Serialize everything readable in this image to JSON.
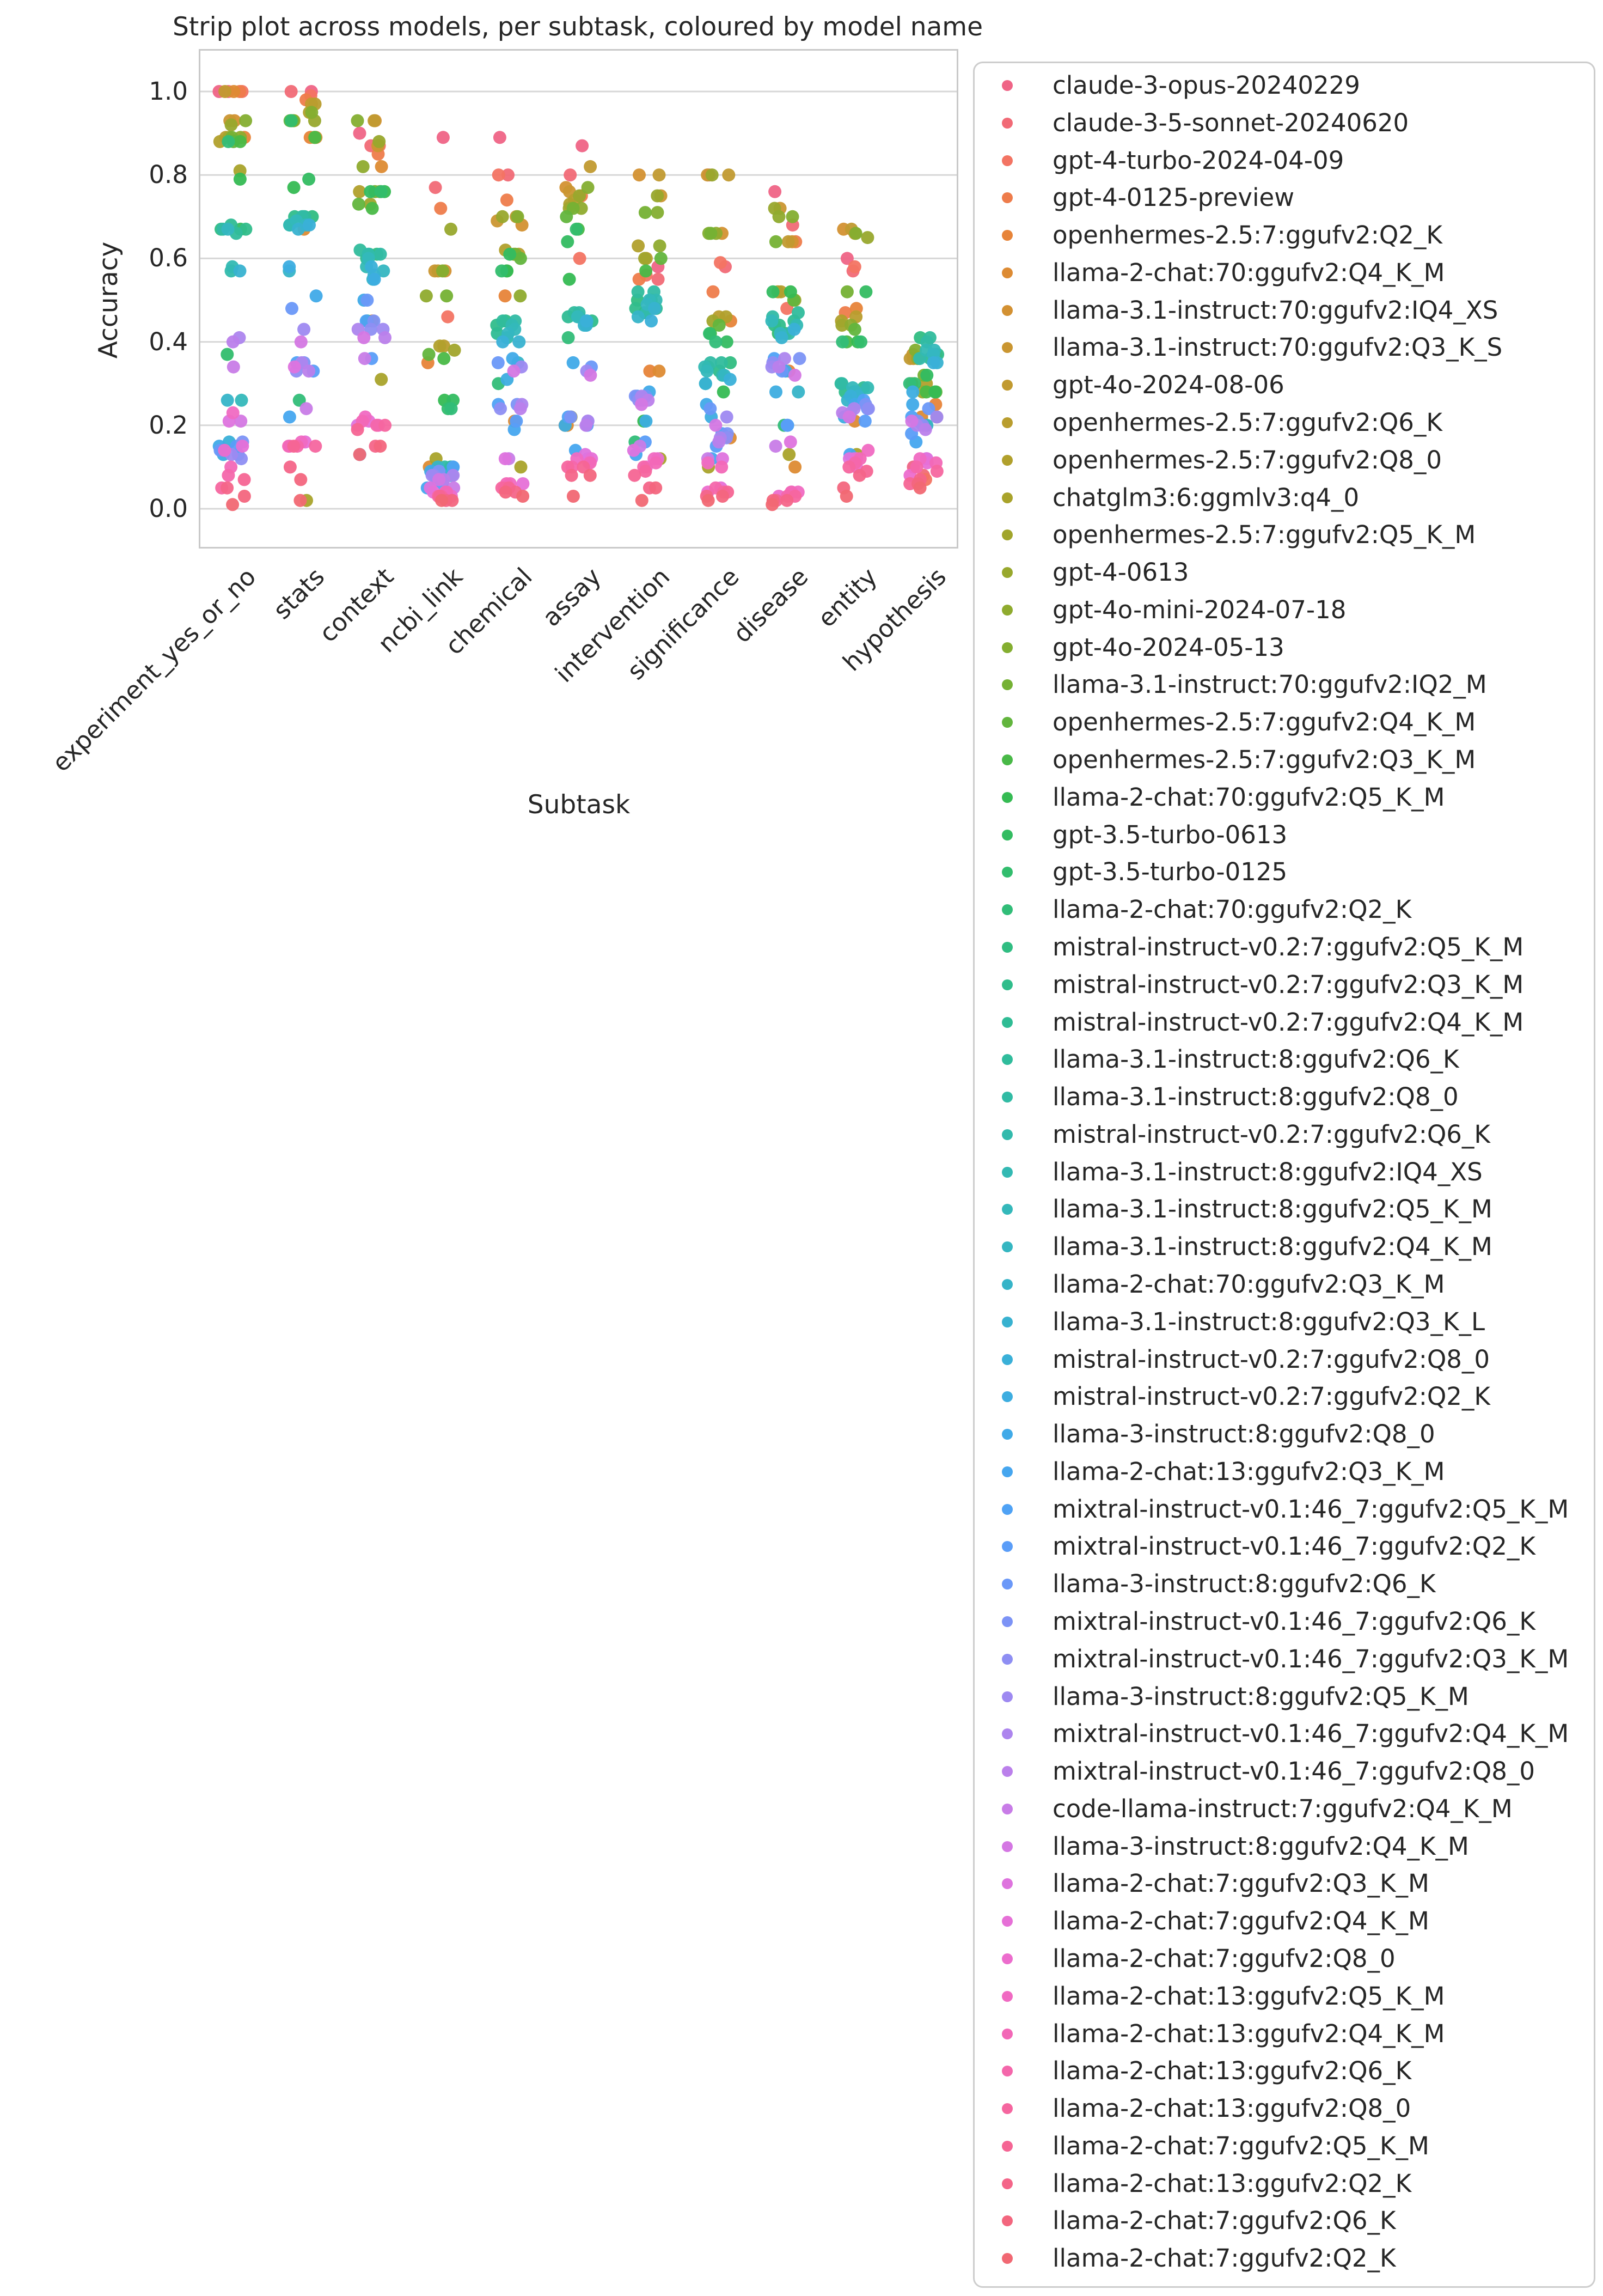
{
  "colors": {
    "background": "#ffffff",
    "text": "#262626",
    "grid": "#d7d7d7",
    "axes_border": "#c9c9c9",
    "legend_border": "#cdcdcd"
  },
  "chart_data": {
    "type": "scatter",
    "subtype": "strip",
    "title": "Strip plot across models, per subtask, coloured by model name",
    "xlabel": "Subtask",
    "ylabel": "Accuracy",
    "categories": [
      "experiment_yes_or_no",
      "stats",
      "context",
      "ncbi_link",
      "chemical",
      "assay",
      "intervention",
      "significance",
      "disease",
      "entity",
      "hypothesis"
    ],
    "ytick_labels": [
      "1.0",
      "0.8",
      "0.6",
      "0.4",
      "0.2",
      "0.0"
    ],
    "ytick_values": [
      1.0,
      0.8,
      0.6,
      0.4,
      0.2,
      0.0
    ],
    "ylim": [
      -0.1,
      1.1
    ],
    "grid": "horizontal",
    "legend_position": "right",
    "series": [
      {
        "name": "claude-3-opus-20240229",
        "color": "#ef6486",
        "values": [
          1.0,
          1.0,
          0.9,
          0.89,
          0.89,
          0.87,
          0.58,
          0.8,
          0.76,
          0.6,
          0.1
        ]
      },
      {
        "name": "claude-3-5-sonnet-20240620",
        "color": "#f16a76",
        "values": [
          1.0,
          1.0,
          0.87,
          0.77,
          0.8,
          0.8,
          0.55,
          0.58,
          0.68,
          0.57,
          0.08
        ]
      },
      {
        "name": "gpt-4-turbo-2024-04-09",
        "color": "#f37463",
        "values": [
          1.0,
          0.99,
          0.87,
          0.46,
          0.8,
          0.6,
          0.56,
          0.59,
          0.48,
          0.58,
          0.07
        ]
      },
      {
        "name": "gpt-4-0125-preview",
        "color": "#ee7c4b",
        "values": [
          1.0,
          0.98,
          0.85,
          0.72,
          0.74,
          0.75,
          0.55,
          0.52,
          0.64,
          0.47,
          0.22
        ]
      },
      {
        "name": "openhermes-2.5:7:ggufv2:Q2_K",
        "color": "#e78439",
        "values": [
          0.89,
          0.89,
          0.45,
          0.35,
          0.51,
          0.2,
          0.33,
          0.45,
          0.33,
          0.48,
          0.25
        ]
      },
      {
        "name": "llama-2-chat:70:ggufv2:Q4_K_M",
        "color": "#dd8b33",
        "values": [
          1.0,
          0.67,
          0.82,
          0.1,
          0.21,
          0.2,
          0.33,
          0.17,
          0.1,
          0.21,
          0.22
        ]
      },
      {
        "name": "llama-3.1-instruct:70:ggufv2:IQ4_XS",
        "color": "#d39132",
        "values": [
          0.93,
          0.89,
          0.93,
          0.57,
          0.68,
          0.77,
          0.8,
          0.66,
          0.64,
          0.67,
          0.36
        ]
      },
      {
        "name": "llama-3.1-instruct:70:ggufv2:Q3_K_S",
        "color": "#ca9631",
        "values": [
          0.93,
          0.89,
          0.87,
          0.57,
          0.69,
          0.76,
          0.75,
          0.8,
          0.72,
          0.66,
          0.37
        ]
      },
      {
        "name": "gpt-4o-2024-08-06",
        "color": "#c19a30",
        "values": [
          1.0,
          0.97,
          0.93,
          0.57,
          0.7,
          0.82,
          0.8,
          0.8,
          0.64,
          0.67,
          0.36
        ]
      },
      {
        "name": "openhermes-2.5:7:ggufv2:Q6_K",
        "color": "#b99d2e",
        "values": [
          0.89,
          0.97,
          0.76,
          0.39,
          0.61,
          0.74,
          0.6,
          0.46,
          0.52,
          0.46,
          0.3
        ]
      },
      {
        "name": "openhermes-2.5:7:ggufv2:Q8_0",
        "color": "#b1a02c",
        "values": [
          0.88,
          0.95,
          0.76,
          0.39,
          0.62,
          0.73,
          0.63,
          0.46,
          0.52,
          0.45,
          0.3
        ]
      },
      {
        "name": "chatglm3:6:ggmlv3:q4_0",
        "color": "#a9a32b",
        "values": [
          0.81,
          0.02,
          0.31,
          0.12,
          0.1,
          0.22,
          0.12,
          0.1,
          0.13,
          0.13,
          0.37
        ]
      },
      {
        "name": "openhermes-2.5:7:ggufv2:Q5_K_M",
        "color": "#a1a52c",
        "values": [
          0.89,
          0.93,
          0.73,
          0.38,
          0.61,
          0.72,
          0.6,
          0.45,
          0.5,
          0.44,
          0.28
        ]
      },
      {
        "name": "gpt-4-0613",
        "color": "#98a82d",
        "values": [
          0.92,
          0.93,
          0.88,
          0.67,
          0.7,
          0.75,
          0.75,
          0.8,
          0.72,
          0.65,
          0.36
        ]
      },
      {
        "name": "gpt-4o-mini-2024-07-18",
        "color": "#8fab2e",
        "values": [
          0.89,
          0.93,
          0.82,
          0.51,
          0.51,
          0.72,
          0.63,
          0.66,
          0.7,
          0.44,
          0.2
        ]
      },
      {
        "name": "gpt-4o-2024-05-13",
        "color": "#84ae30",
        "values": [
          0.93,
          0.95,
          0.93,
          0.57,
          0.7,
          0.77,
          0.71,
          0.66,
          0.7,
          0.66,
          0.38
        ]
      },
      {
        "name": "llama-3.1-instruct:70:ggufv2:IQ2_M",
        "color": "#75b134",
        "values": [
          0.89,
          0.93,
          0.76,
          0.51,
          0.61,
          0.72,
          0.71,
          0.66,
          0.64,
          0.52,
          0.32
        ]
      },
      {
        "name": "openhermes-2.5:7:ggufv2:Q4_K_M",
        "color": "#62b53d",
        "values": [
          0.88,
          0.93,
          0.73,
          0.37,
          0.6,
          0.7,
          0.6,
          0.44,
          0.5,
          0.43,
          0.28
        ]
      },
      {
        "name": "openhermes-2.5:7:ggufv2:Q3_K_M",
        "color": "#49b947",
        "values": [
          0.88,
          0.89,
          0.72,
          0.36,
          0.57,
          0.67,
          0.57,
          0.42,
          0.42,
          0.4,
          0.28
        ]
      },
      {
        "name": "llama-2-chat:70:ggufv2:Q5_K_M",
        "color": "#35bb53",
        "values": [
          0.79,
          0.77,
          0.76,
          0.26,
          0.57,
          0.55,
          0.21,
          0.28,
          0.52,
          0.4,
          0.28
        ]
      },
      {
        "name": "gpt-3.5-turbo-0613",
        "color": "#33bc61",
        "values": [
          0.67,
          0.79,
          0.76,
          0.26,
          0.61,
          0.64,
          0.5,
          0.4,
          0.52,
          0.52,
          0.32
        ]
      },
      {
        "name": "gpt-3.5-turbo-0125",
        "color": "#32bd6d",
        "values": [
          0.37,
          0.93,
          0.76,
          0.24,
          0.57,
          0.67,
          0.47,
          0.42,
          0.42,
          0.4,
          0.3
        ]
      },
      {
        "name": "llama-2-chat:70:ggufv2:Q2_K",
        "color": "#31bd78",
        "values": [
          0.88,
          0.26,
          0.45,
          0.24,
          0.3,
          0.41,
          0.16,
          0.4,
          0.2,
          0.4,
          0.3
        ]
      },
      {
        "name": "mistral-instruct-v0.2:7:ggufv2:Q5_K_M",
        "color": "#30bd82",
        "values": [
          0.67,
          0.7,
          0.61,
          0.1,
          0.45,
          0.46,
          0.5,
          0.35,
          0.44,
          0.28,
          0.41
        ]
      },
      {
        "name": "mistral-instruct-v0.2:7:ggufv2:Q3_K_M",
        "color": "#30bd8b",
        "values": [
          0.67,
          0.7,
          0.61,
          0.09,
          0.44,
          0.45,
          0.48,
          0.33,
          0.44,
          0.28,
          0.37
        ]
      },
      {
        "name": "mistral-instruct-v0.2:7:ggufv2:Q4_K_M",
        "color": "#2fbc94",
        "values": [
          0.68,
          0.7,
          0.6,
          0.1,
          0.42,
          0.46,
          0.48,
          0.34,
          0.45,
          0.29,
          0.36
        ]
      },
      {
        "name": "llama-3.1-instruct:8:ggufv2:Q6_K",
        "color": "#30bc9c",
        "values": [
          0.66,
          0.7,
          0.62,
          0.1,
          0.45,
          0.47,
          0.52,
          0.35,
          0.47,
          0.3,
          0.41
        ]
      },
      {
        "name": "llama-3.1-instruct:8:ggufv2:Q8_0",
        "color": "#31bba4",
        "values": [
          0.67,
          0.7,
          0.61,
          0.1,
          0.45,
          0.47,
          0.52,
          0.35,
          0.46,
          0.3,
          0.4
        ]
      },
      {
        "name": "mistral-instruct-v0.2:7:ggufv2:Q6_K",
        "color": "#32baac",
        "values": [
          0.57,
          0.68,
          0.61,
          0.09,
          0.41,
          0.44,
          0.47,
          0.32,
          0.42,
          0.28,
          0.36
        ]
      },
      {
        "name": "llama-3.1-instruct:8:ggufv2:IQ4_XS",
        "color": "#33b9b3",
        "values": [
          0.58,
          0.68,
          0.58,
          0.09,
          0.44,
          0.46,
          0.5,
          0.34,
          0.44,
          0.29,
          0.38
        ]
      },
      {
        "name": "llama-3.1-instruct:8:ggufv2:Q5_K_M",
        "color": "#34b8ba",
        "values": [
          0.26,
          0.69,
          0.6,
          0.09,
          0.43,
          0.46,
          0.5,
          0.33,
          0.45,
          0.29,
          0.38
        ]
      },
      {
        "name": "llama-3.1-instruct:8:ggufv2:Q4_K_M",
        "color": "#35b6c1",
        "values": [
          0.67,
          0.68,
          0.57,
          0.08,
          0.42,
          0.45,
          0.49,
          0.32,
          0.42,
          0.28,
          0.37
        ]
      },
      {
        "name": "llama-2-chat:70:ggufv2:Q3_K_M",
        "color": "#36b4c8",
        "values": [
          0.26,
          0.57,
          0.55,
          0.1,
          0.35,
          0.44,
          0.46,
          0.3,
          0.28,
          0.26,
          0.2
        ]
      },
      {
        "name": "llama-3.1-instruct:8:ggufv2:Q3_K_L",
        "color": "#38b2d0",
        "values": [
          0.57,
          0.67,
          0.56,
          0.08,
          0.4,
          0.44,
          0.48,
          0.3,
          0.41,
          0.27,
          0.35
        ]
      },
      {
        "name": "mistral-instruct-v0.2:7:ggufv2:Q8_0",
        "color": "#3ab0d8",
        "values": [
          0.16,
          0.68,
          0.58,
          0.08,
          0.4,
          0.45,
          0.45,
          0.31,
          0.43,
          0.27,
          0.35
        ]
      },
      {
        "name": "mistral-instruct-v0.2:7:ggufv2:Q2_K",
        "color": "#3dade0",
        "values": [
          0.13,
          0.58,
          0.55,
          0.07,
          0.31,
          0.2,
          0.21,
          0.22,
          0.28,
          0.22,
          0.28
        ]
      },
      {
        "name": "llama-3-instruct:8:ggufv2:Q8_0",
        "color": "#40aae8",
        "values": [
          0.15,
          0.51,
          0.5,
          0.09,
          0.36,
          0.35,
          0.28,
          0.25,
          0.33,
          0.25,
          0.25
        ]
      },
      {
        "name": "llama-2-chat:13:ggufv2:Q3_K_M",
        "color": "#46a6ef",
        "values": [
          0.14,
          0.22,
          0.13,
          0.05,
          0.19,
          0.14,
          0.13,
          0.12,
          0.2,
          0.13,
          0.16
        ]
      },
      {
        "name": "mixtral-instruct-v0.1:46_7:ggufv2:Q5_K_M",
        "color": "#4fa2f5",
        "values": [
          0.13,
          0.35,
          0.45,
          0.1,
          0.25,
          0.22,
          0.27,
          0.18,
          0.36,
          0.26,
          0.22
        ]
      },
      {
        "name": "mixtral-instruct-v0.1:46_7:ggufv2:Q2_K",
        "color": "#5a9df8",
        "values": [
          0.15,
          0.33,
          0.36,
          0.06,
          0.21,
          0.2,
          0.16,
          0.15,
          0.2,
          0.21,
          0.18
        ]
      },
      {
        "name": "llama-3-instruct:8:ggufv2:Q6_K",
        "color": "#6a98f8",
        "values": [
          0.14,
          0.48,
          0.5,
          0.08,
          0.35,
          0.34,
          0.27,
          0.24,
          0.33,
          0.24,
          0.24
        ]
      },
      {
        "name": "mixtral-instruct-v0.1:46_7:ggufv2:Q6_K",
        "color": "#7c93f6",
        "values": [
          0.16,
          0.35,
          0.45,
          0.09,
          0.25,
          0.22,
          0.27,
          0.18,
          0.36,
          0.25,
          0.21
        ]
      },
      {
        "name": "mixtral-instruct-v0.1:46_7:ggufv2:Q3_K_M",
        "color": "#8e8ef3",
        "values": [
          0.12,
          0.33,
          0.43,
          0.08,
          0.24,
          0.21,
          0.26,
          0.17,
          0.35,
          0.24,
          0.2
        ]
      },
      {
        "name": "llama-3-instruct:8:ggufv2:Q5_K_M",
        "color": "#9e89f1",
        "values": [
          0.13,
          0.43,
          0.43,
          0.08,
          0.34,
          0.33,
          0.26,
          0.22,
          0.34,
          0.23,
          0.22
        ]
      },
      {
        "name": "mixtral-instruct-v0.1:46_7:ggufv2:Q4_K_M",
        "color": "#ad85ee",
        "values": [
          0.41,
          0.35,
          0.43,
          0.08,
          0.25,
          0.21,
          0.27,
          0.17,
          0.36,
          0.24,
          0.2
        ]
      },
      {
        "name": "mixtral-instruct-v0.1:46_7:ggufv2:Q8_0",
        "color": "#bb80eb",
        "values": [
          0.4,
          0.33,
          0.41,
          0.07,
          0.24,
          0.2,
          0.26,
          0.16,
          0.34,
          0.23,
          0.19
        ]
      },
      {
        "name": "code-llama-instruct:7:ggufv2:Q4_K_M",
        "color": "#c87ce7",
        "values": [
          0.34,
          0.24,
          0.36,
          0.05,
          0.12,
          0.12,
          0.15,
          0.12,
          0.15,
          0.12,
          0.12
        ]
      },
      {
        "name": "llama-3-instruct:8:ggufv2:Q4_K_M",
        "color": "#d477e3",
        "values": [
          0.21,
          0.4,
          0.41,
          0.07,
          0.33,
          0.32,
          0.25,
          0.2,
          0.32,
          0.22,
          0.21
        ]
      },
      {
        "name": "llama-2-chat:7:ggufv2:Q3_K_M",
        "color": "#de73de",
        "values": [
          0.21,
          0.34,
          0.2,
          0.05,
          0.12,
          0.13,
          0.14,
          0.12,
          0.16,
          0.12,
          0.12
        ]
      },
      {
        "name": "llama-2-chat:7:ggufv2:Q4_K_M",
        "color": "#e670d7",
        "values": [
          0.15,
          0.16,
          0.21,
          0.04,
          0.06,
          0.12,
          0.12,
          0.05,
          0.04,
          0.12,
          0.11
        ]
      },
      {
        "name": "llama-2-chat:7:ggufv2:Q8_0",
        "color": "#ec6dcd",
        "values": [
          0.14,
          0.15,
          0.2,
          0.03,
          0.05,
          0.11,
          0.1,
          0.04,
          0.03,
          0.1,
          0.08
        ]
      },
      {
        "name": "llama-2-chat:13:ggufv2:Q5_K_M",
        "color": "#f06ac2",
        "values": [
          0.23,
          0.16,
          0.22,
          0.04,
          0.06,
          0.12,
          0.12,
          0.11,
          0.04,
          0.14,
          0.12
        ]
      },
      {
        "name": "llama-2-chat:13:ggufv2:Q4_K_M",
        "color": "#f268b7",
        "values": [
          0.1,
          0.15,
          0.21,
          0.04,
          0.06,
          0.11,
          0.11,
          0.1,
          0.04,
          0.12,
          0.11
        ]
      },
      {
        "name": "llama-2-chat:13:ggufv2:Q6_K",
        "color": "#f467ab",
        "values": [
          0.08,
          0.15,
          0.2,
          0.03,
          0.05,
          0.1,
          0.1,
          0.05,
          0.03,
          0.11,
          0.1
        ]
      },
      {
        "name": "llama-2-chat:13:ggufv2:Q8_0",
        "color": "#f5669f",
        "values": [
          0.05,
          0.15,
          0.2,
          0.03,
          0.05,
          0.1,
          0.09,
          0.04,
          0.03,
          0.1,
          0.09
        ]
      },
      {
        "name": "llama-2-chat:7:ggufv2:Q5_K_M",
        "color": "#f56594",
        "values": [
          0.07,
          0.15,
          0.19,
          0.03,
          0.05,
          0.1,
          0.08,
          0.04,
          0.02,
          0.09,
          0.06
        ]
      },
      {
        "name": "llama-2-chat:13:ggufv2:Q2_K",
        "color": "#f46589",
        "values": [
          0.05,
          0.1,
          0.15,
          0.02,
          0.04,
          0.08,
          0.05,
          0.03,
          0.02,
          0.08,
          0.07
        ]
      },
      {
        "name": "llama-2-chat:7:ggufv2:Q6_K",
        "color": "#f3667e",
        "values": [
          0.03,
          0.07,
          0.15,
          0.02,
          0.04,
          0.08,
          0.05,
          0.03,
          0.02,
          0.05,
          0.06
        ]
      },
      {
        "name": "llama-2-chat:7:ggufv2:Q2_K",
        "color": "#f16873",
        "values": [
          0.01,
          0.02,
          0.13,
          0.02,
          0.03,
          0.03,
          0.02,
          0.02,
          0.01,
          0.03,
          0.05
        ]
      }
    ]
  }
}
